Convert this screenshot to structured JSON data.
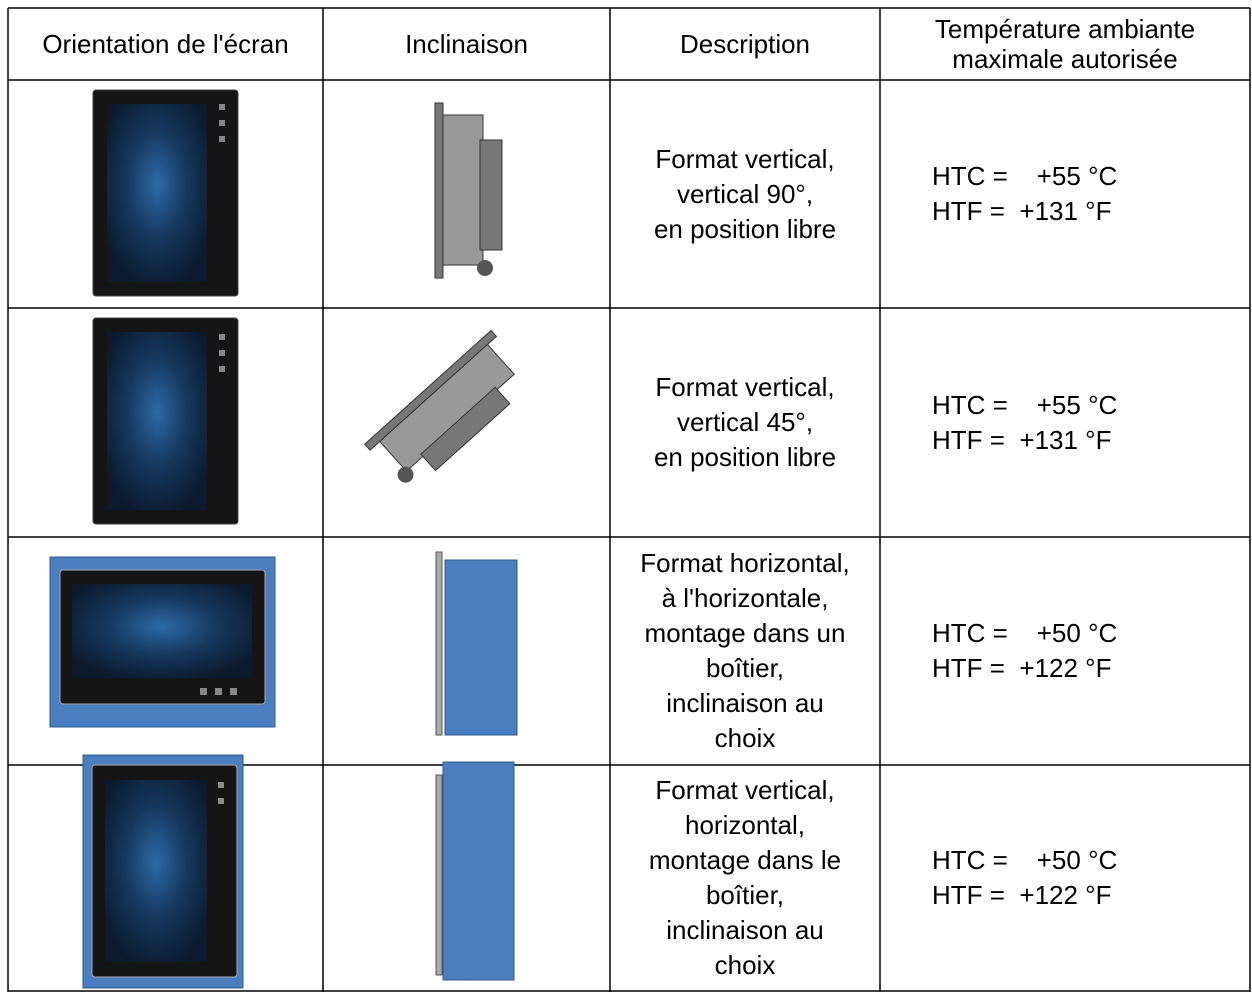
{
  "table": {
    "header": [
      "Orientation de l'écran",
      "Inclinaison",
      "Description",
      [
        "Température ambiante",
        "maximale autorisée"
      ]
    ],
    "rows": [
      {
        "description": [
          "Format vertical,",
          "vertical 90°,",
          "en position libre"
        ],
        "temperature": [
          "HTC =    +55 °C",
          "HTF =  +131 °F"
        ]
      },
      {
        "description": [
          "Format vertical,",
          "vertical 45°,",
          "en position libre"
        ],
        "temperature": [
          "HTC =    +55 °C",
          "HTF =  +131 °F"
        ]
      },
      {
        "description": [
          "Format horizontal,",
          "à l'horizontale,",
          "montage dans un",
          "boîtier,",
          "inclinaison au",
          "choix"
        ],
        "temperature": [
          "HTC =    +50 °C",
          "HTF =  +122 °F"
        ]
      },
      {
        "description": [
          "Format vertical,",
          "horizontal,",
          "montage dans le",
          "boîtier,",
          "inclinaison au",
          "choix"
        ],
        "temperature": [
          "HTC =    +50 °C",
          "HTF =  +122 °F"
        ]
      }
    ]
  }
}
